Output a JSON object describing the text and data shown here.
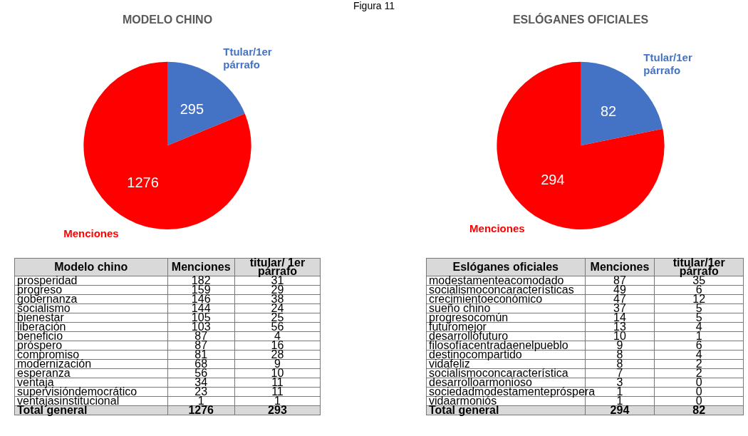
{
  "chart_data": [
    {
      "type": "pie",
      "title": "MODELO CHINO",
      "annotations": [
        "Figura 11"
      ],
      "categories": [
        "Ttular/1er párrafo",
        "Menciones"
      ],
      "values": [
        295,
        1276
      ],
      "colors": [
        "#4472c4",
        "#ff0000"
      ],
      "data_labels": true,
      "legend": false
    },
    {
      "type": "pie",
      "title": "ESLÓGANES OFICIALES",
      "categories": [
        "Ttular/1er párrafo",
        "Menciones"
      ],
      "values": [
        82,
        294
      ],
      "colors": [
        "#4472c4",
        "#ff0000"
      ],
      "data_labels": true,
      "legend": false
    },
    {
      "type": "other",
      "data_labels": true,
      "xlabel": "Modelo chino",
      "categories": [
        "prosperidad",
        "progreso",
        "gobernanza",
        "socialismo",
        "bienestar",
        "liberación",
        "beneficio",
        "próspero",
        "compromiso",
        "modernización",
        "esperanza",
        "ventaja",
        "supervisióndemocrático",
        "ventajasinstitucional",
        "Total general"
      ],
      "series": [
        {
          "name": "Menciones",
          "values": [
            182,
            159,
            146,
            144,
            105,
            103,
            87,
            87,
            81,
            68,
            56,
            34,
            23,
            1,
            1276
          ]
        },
        {
          "name": "titular/ 1er párrafo",
          "values": [
            31,
            29,
            38,
            24,
            25,
            56,
            4,
            16,
            28,
            9,
            10,
            11,
            11,
            1,
            293
          ]
        }
      ]
    },
    {
      "type": "other",
      "data_labels": true,
      "xlabel": "Eslóganes oficiales",
      "categories": [
        "modestamenteacomodado",
        "socialismoconcaracterísticas",
        "crecimientoeconómico",
        "sueño chino",
        "progresocomún",
        "futuromejor",
        "desarrollofuturo",
        "filosofíacentradaenelpueblo",
        "destinocompartido",
        "vidafeliz",
        "socialismoconcaracterística",
        "desarrolloarmonioso",
        "sociedadmodestamentepróspera",
        "vidaarmoniós",
        "Total general"
      ],
      "series": [
        {
          "name": "Menciones",
          "values": [
            87,
            49,
            47,
            37,
            14,
            13,
            10,
            9,
            8,
            8,
            7,
            3,
            1,
            1,
            294
          ]
        },
        {
          "name": "titular/1er párrafo",
          "values": [
            35,
            6,
            12,
            5,
            5,
            4,
            1,
            6,
            4,
            2,
            2,
            0,
            0,
            0,
            82
          ]
        }
      ]
    }
  ]
}
